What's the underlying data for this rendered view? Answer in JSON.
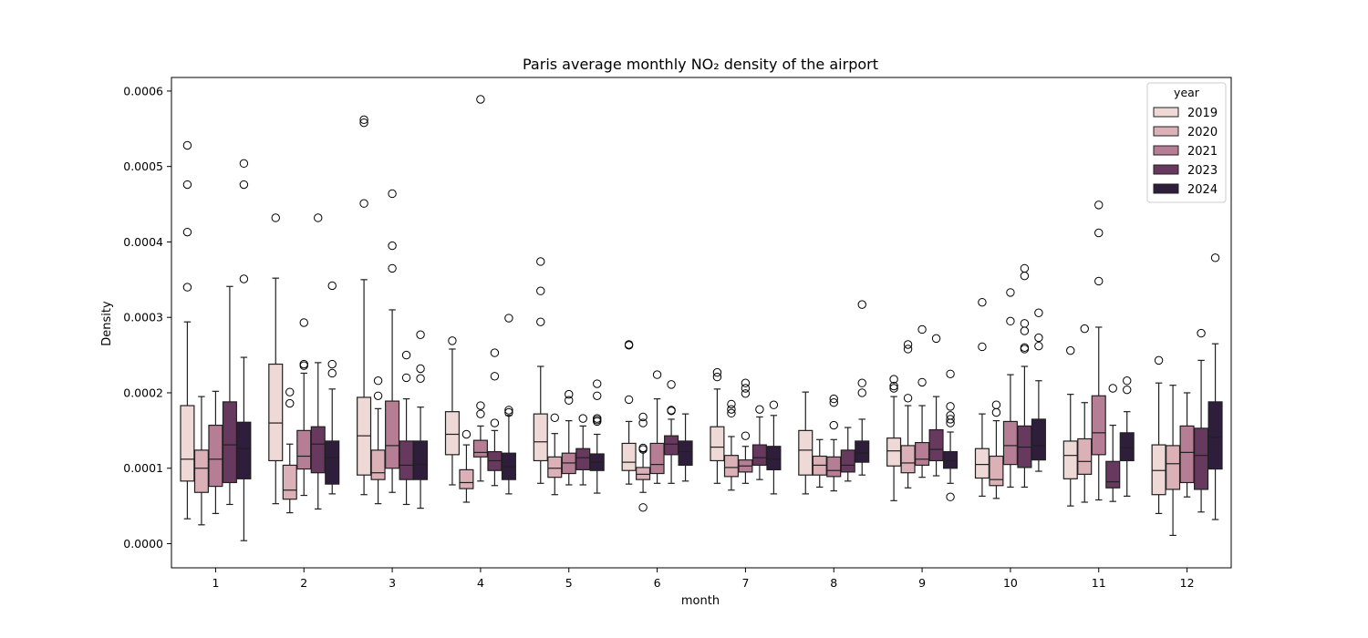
{
  "chart_data": {
    "type": "box",
    "title": "Paris average monthly NO₂ density of the airport",
    "xlabel": "month",
    "ylabel": "Density",
    "ylim": [
      -3.2e-05,
      0.000618
    ],
    "yticks": [
      0.0,
      0.0001,
      0.0002,
      0.0003,
      0.0004,
      0.0005,
      0.0006
    ],
    "ytick_labels": [
      "0.0000",
      "0.0001",
      "0.0002",
      "0.0003",
      "0.0004",
      "0.0005",
      "0.0006"
    ],
    "categories": [
      "1",
      "2",
      "3",
      "4",
      "5",
      "6",
      "7",
      "8",
      "9",
      "10",
      "11",
      "12"
    ],
    "grid": false,
    "legend": {
      "title": "year",
      "placement": "top-right"
    },
    "series": [
      {
        "name": "2019",
        "color": "#efd9d6",
        "boxes": [
          {
            "whislo": 3.3e-05,
            "q1": 8.3e-05,
            "med": 0.000112,
            "q3": 0.000183,
            "whishi": 0.000294,
            "fliers": [
              0.00034,
              0.000413,
              0.000476,
              0.000528
            ]
          },
          {
            "whislo": 5.3e-05,
            "q1": 0.00011,
            "med": 0.00016,
            "q3": 0.000238,
            "whishi": 0.000352,
            "fliers": [
              0.000432
            ]
          },
          {
            "whislo": 6.5e-05,
            "q1": 9.1e-05,
            "med": 0.000143,
            "q3": 0.000194,
            "whishi": 0.00035,
            "fliers": [
              0.000451,
              0.000558,
              0.000562
            ]
          },
          {
            "whislo": 7.8e-05,
            "q1": 0.000118,
            "med": 0.000145,
            "q3": 0.000175,
            "whishi": 0.000258,
            "fliers": [
              0.000269
            ]
          },
          {
            "whislo": 8e-05,
            "q1": 0.00011,
            "med": 0.000135,
            "q3": 0.000172,
            "whishi": 0.000235,
            "fliers": [
              0.000294,
              0.000335,
              0.000374
            ]
          },
          {
            "whislo": 7.9e-05,
            "q1": 9.7e-05,
            "med": 0.000108,
            "q3": 0.000133,
            "whishi": 0.000162,
            "fliers": [
              0.000191,
              0.000263,
              0.000264
            ]
          },
          {
            "whislo": 8e-05,
            "q1": 0.00011,
            "med": 0.000128,
            "q3": 0.000155,
            "whishi": 0.000205,
            "fliers": [
              0.000221,
              0.000227
            ]
          },
          {
            "whislo": 6.6e-05,
            "q1": 9.1e-05,
            "med": 0.000124,
            "q3": 0.00015,
            "whishi": 0.000201,
            "fliers": []
          },
          {
            "whislo": 5.7e-05,
            "q1": 0.000103,
            "med": 0.000123,
            "q3": 0.00014,
            "whishi": 0.000195,
            "fliers": [
              0.000206,
              0.000209,
              0.000218
            ]
          },
          {
            "whislo": 6.3e-05,
            "q1": 8.7e-05,
            "med": 0.000105,
            "q3": 0.000126,
            "whishi": 0.000172,
            "fliers": [
              0.000261,
              0.00032
            ]
          },
          {
            "whislo": 5e-05,
            "q1": 8.6e-05,
            "med": 0.000117,
            "q3": 0.000136,
            "whishi": 0.000198,
            "fliers": [
              0.000256
            ]
          },
          {
            "whislo": 4e-05,
            "q1": 6.5e-05,
            "med": 9.7e-05,
            "q3": 0.000131,
            "whishi": 0.000213,
            "fliers": [
              0.000243
            ]
          }
        ]
      },
      {
        "name": "2020",
        "color": "#dbb1b7",
        "boxes": [
          {
            "whislo": 2.5e-05,
            "q1": 6.8e-05,
            "med": 0.0001,
            "q3": 0.000124,
            "whishi": 0.000195,
            "fliers": []
          },
          {
            "whislo": 4.1e-05,
            "q1": 5.9e-05,
            "med": 7.1e-05,
            "q3": 0.000104,
            "whishi": 0.000132,
            "fliers": [
              0.000186,
              0.000201
            ]
          },
          {
            "whislo": 5.3e-05,
            "q1": 8.5e-05,
            "med": 9.4e-05,
            "q3": 0.000124,
            "whishi": 0.000179,
            "fliers": [
              0.000196,
              0.000216
            ]
          },
          {
            "whislo": 5.5e-05,
            "q1": 7.3e-05,
            "med": 8.1e-05,
            "q3": 9.8e-05,
            "whishi": 0.000131,
            "fliers": [
              0.000145
            ]
          },
          {
            "whislo": 6.5e-05,
            "q1": 8.8e-05,
            "med": 0.0001,
            "q3": 0.000115,
            "whishi": 0.000146,
            "fliers": [
              0.000167
            ]
          },
          {
            "whislo": 6.8e-05,
            "q1": 8.5e-05,
            "med": 9.2e-05,
            "q3": 0.000101,
            "whishi": 0.000122,
            "fliers": [
              4.8e-05,
              0.000125,
              0.000127,
              0.00016,
              0.000168
            ]
          },
          {
            "whislo": 7.1e-05,
            "q1": 8.9e-05,
            "med": 0.000101,
            "q3": 0.000117,
            "whishi": 0.000142,
            "fliers": [
              0.000173,
              0.000178,
              0.000185
            ]
          },
          {
            "whislo": 7.5e-05,
            "q1": 9.1e-05,
            "med": 0.000104,
            "q3": 0.000116,
            "whishi": 0.000138,
            "fliers": []
          },
          {
            "whislo": 7.4e-05,
            "q1": 9.4e-05,
            "med": 0.000107,
            "q3": 0.00013,
            "whishi": 0.000183,
            "fliers": [
              0.000193,
              0.000258,
              0.000264
            ]
          },
          {
            "whislo": 6e-05,
            "q1": 7.7e-05,
            "med": 8.5e-05,
            "q3": 0.000116,
            "whishi": 0.000163,
            "fliers": [
              0.000174,
              0.000184
            ]
          },
          {
            "whislo": 5.5e-05,
            "q1": 9.2e-05,
            "med": 0.000109,
            "q3": 0.000139,
            "whishi": 0.000187,
            "fliers": [
              0.000285
            ]
          },
          {
            "whislo": 1.1e-05,
            "q1": 7.2e-05,
            "med": 0.000106,
            "q3": 0.00013,
            "whishi": 0.00021,
            "fliers": []
          }
        ]
      },
      {
        "name": "2021",
        "color": "#b67e95",
        "boxes": [
          {
            "whislo": 4e-05,
            "q1": 7.6e-05,
            "med": 0.000112,
            "q3": 0.000157,
            "whishi": 0.000202,
            "fliers": []
          },
          {
            "whislo": 6.4e-05,
            "q1": 9.9e-05,
            "med": 0.000116,
            "q3": 0.00015,
            "whishi": 0.000226,
            "fliers": [
              0.000236,
              0.000238,
              0.000293
            ]
          },
          {
            "whislo": 6.8e-05,
            "q1": 0.0001,
            "med": 0.00013,
            "q3": 0.000189,
            "whishi": 0.00031,
            "fliers": [
              0.000365,
              0.000395,
              0.000464
            ]
          },
          {
            "whislo": 8.3e-05,
            "q1": 0.000115,
            "med": 0.000121,
            "q3": 0.000137,
            "whishi": 0.000156,
            "fliers": [
              0.000172,
              0.000183,
              0.000589
            ]
          },
          {
            "whislo": 7.8e-05,
            "q1": 9.3e-05,
            "med": 0.000107,
            "q3": 0.00012,
            "whishi": 0.000163,
            "fliers": [
              0.00019,
              0.000198
            ]
          },
          {
            "whislo": 8e-05,
            "q1": 9.3e-05,
            "med": 0.000105,
            "q3": 0.000133,
            "whishi": 0.000192,
            "fliers": [
              0.000224
            ]
          },
          {
            "whislo": 8e-05,
            "q1": 9.5e-05,
            "med": 0.000103,
            "q3": 0.000111,
            "whishi": 0.000129,
            "fliers": [
              0.000143,
              0.000199,
              0.000206,
              0.000213
            ]
          },
          {
            "whislo": 7e-05,
            "q1": 8.9e-05,
            "med": 9.7e-05,
            "q3": 0.000115,
            "whishi": 0.000138,
            "fliers": [
              0.000157,
              0.000187,
              0.000192
            ]
          },
          {
            "whislo": 8.8e-05,
            "q1": 0.000104,
            "med": 0.000112,
            "q3": 0.000134,
            "whishi": 0.000183,
            "fliers": [
              0.000214,
              0.000284
            ]
          },
          {
            "whislo": 7.5e-05,
            "q1": 0.000105,
            "med": 0.00013,
            "q3": 0.000162,
            "whishi": 0.000224,
            "fliers": [
              0.000295,
              0.000333
            ]
          },
          {
            "whislo": 5.8e-05,
            "q1": 0.000118,
            "med": 0.000147,
            "q3": 0.000196,
            "whishi": 0.000287,
            "fliers": [
              0.000348,
              0.000412,
              0.000449
            ]
          },
          {
            "whislo": 6.2e-05,
            "q1": 8.1e-05,
            "med": 0.000121,
            "q3": 0.000156,
            "whishi": 0.0002,
            "fliers": []
          }
        ]
      },
      {
        "name": "2023",
        "color": "#68395f",
        "boxes": [
          {
            "whislo": 5.2e-05,
            "q1": 8.1e-05,
            "med": 0.000131,
            "q3": 0.000188,
            "whishi": 0.000341,
            "fliers": []
          },
          {
            "whislo": 4.6e-05,
            "q1": 9.4e-05,
            "med": 0.000132,
            "q3": 0.000155,
            "whishi": 0.00024,
            "fliers": [
              0.000432
            ]
          },
          {
            "whislo": 5.2e-05,
            "q1": 8.5e-05,
            "med": 0.000104,
            "q3": 0.000136,
            "whishi": 0.000192,
            "fliers": [
              0.00022,
              0.00025
            ]
          },
          {
            "whislo": 7.7e-05,
            "q1": 9.7e-05,
            "med": 0.00011,
            "q3": 0.000122,
            "whishi": 0.00015,
            "fliers": [
              0.00016,
              0.000222,
              0.000253
            ]
          },
          {
            "whislo": 7.8e-05,
            "q1": 9.8e-05,
            "med": 0.000114,
            "q3": 0.000126,
            "whishi": 0.000156,
            "fliers": [
              0.000166
            ]
          },
          {
            "whislo": 8e-05,
            "q1": 0.000118,
            "med": 0.000132,
            "q3": 0.000143,
            "whishi": 0.000165,
            "fliers": [
              0.000176,
              0.000177,
              0.000211
            ]
          },
          {
            "whislo": 8.5e-05,
            "q1": 0.000104,
            "med": 0.000114,
            "q3": 0.000131,
            "whishi": 0.000168,
            "fliers": [
              0.000178
            ]
          },
          {
            "whislo": 8.3e-05,
            "q1": 9.5e-05,
            "med": 0.000104,
            "q3": 0.000124,
            "whishi": 0.000154,
            "fliers": []
          },
          {
            "whislo": 9e-05,
            "q1": 0.00011,
            "med": 0.000125,
            "q3": 0.000151,
            "whishi": 0.000195,
            "fliers": [
              0.000272
            ]
          },
          {
            "whislo": 7.5e-05,
            "q1": 0.000101,
            "med": 0.000128,
            "q3": 0.000156,
            "whishi": 0.000235,
            "fliers": [
              0.000258,
              0.00026,
              0.000282,
              0.000292,
              0.000355,
              0.000365
            ]
          },
          {
            "whislo": 5.6e-05,
            "q1": 7.4e-05,
            "med": 8.2e-05,
            "q3": 0.000109,
            "whishi": 0.000157,
            "fliers": [
              0.000206
            ]
          },
          {
            "whislo": 4.2e-05,
            "q1": 7.2e-05,
            "med": 0.000117,
            "q3": 0.000153,
            "whishi": 0.000243,
            "fliers": [
              0.000279
            ]
          }
        ]
      },
      {
        "name": "2024",
        "color": "#2e1e3c",
        "boxes": [
          {
            "whislo": 4e-06,
            "q1": 8.6e-05,
            "med": 0.000126,
            "q3": 0.000161,
            "whishi": 0.000247,
            "fliers": [
              0.000351,
              0.000476,
              0.000504
            ]
          },
          {
            "whislo": 6.6e-05,
            "q1": 7.9e-05,
            "med": 0.000114,
            "q3": 0.000136,
            "whishi": 0.000205,
            "fliers": [
              0.000226,
              0.000238,
              0.000342
            ]
          },
          {
            "whislo": 4.7e-05,
            "q1": 8.5e-05,
            "med": 0.000105,
            "q3": 0.000136,
            "whishi": 0.000181,
            "fliers": [
              0.000219,
              0.000232,
              0.000277
            ]
          },
          {
            "whislo": 6.6e-05,
            "q1": 8.5e-05,
            "med": 0.000102,
            "q3": 0.00012,
            "whishi": 0.00017,
            "fliers": [
              0.000174,
              0.000177,
              0.000299
            ]
          },
          {
            "whislo": 6.7e-05,
            "q1": 9.7e-05,
            "med": 0.000108,
            "q3": 0.000119,
            "whishi": 0.000145,
            "fliers": [
              0.000162,
              0.000164,
              0.000166,
              0.000196,
              0.000212
            ]
          },
          {
            "whislo": 8.3e-05,
            "q1": 0.000104,
            "med": 0.000122,
            "q3": 0.000136,
            "whishi": 0.000172,
            "fliers": []
          },
          {
            "whislo": 6.6e-05,
            "q1": 9.8e-05,
            "med": 0.000112,
            "q3": 0.000129,
            "whishi": 0.00017,
            "fliers": [
              0.000184
            ]
          },
          {
            "whislo": 9.1e-05,
            "q1": 0.000108,
            "med": 0.00012,
            "q3": 0.000136,
            "whishi": 0.000165,
            "fliers": [
              0.0002,
              0.000213,
              0.000317
            ]
          },
          {
            "whislo": 8e-05,
            "q1": 0.0001,
            "med": 0.00011,
            "q3": 0.000122,
            "whishi": 0.000148,
            "fliers": [
              6.2e-05,
              0.00016,
              0.000165,
              0.00017,
              0.000182,
              0.000225
            ]
          },
          {
            "whislo": 9.6e-05,
            "q1": 0.000111,
            "med": 0.00013,
            "q3": 0.000165,
            "whishi": 0.000216,
            "fliers": [
              0.000262,
              0.000273,
              0.000306
            ]
          },
          {
            "whislo": 6.3e-05,
            "q1": 0.00011,
            "med": 0.000127,
            "q3": 0.000147,
            "whishi": 0.000175,
            "fliers": [
              0.000204,
              0.000216
            ]
          },
          {
            "whislo": 3.2e-05,
            "q1": 9.9e-05,
            "med": 0.000141,
            "q3": 0.000188,
            "whishi": 0.000265,
            "fliers": [
              0.000379
            ]
          }
        ]
      }
    ]
  }
}
